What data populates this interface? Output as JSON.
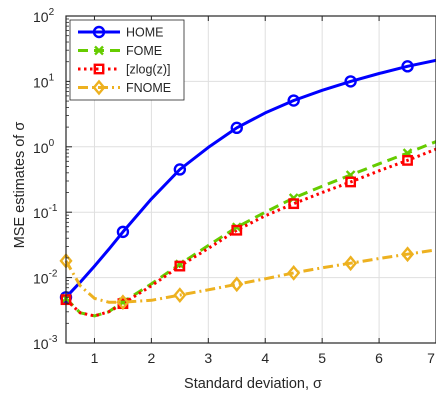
{
  "chart_data": {
    "type": "line",
    "xlabel": "Standard deviation, σ",
    "ylabel": "MSE estimates of σ",
    "xlim": [
      0.5,
      7
    ],
    "ylim": [
      0.001,
      100
    ],
    "yscale": "log",
    "grid": true,
    "legend_placement": "top-left",
    "x_ticks": [
      {
        "value": 1,
        "label": "1"
      },
      {
        "value": 2,
        "label": "2"
      },
      {
        "value": 3,
        "label": "3"
      },
      {
        "value": 4,
        "label": "4"
      },
      {
        "value": 5,
        "label": "5"
      },
      {
        "value": 6,
        "label": "6"
      },
      {
        "value": 7,
        "label": "7"
      }
    ],
    "y_ticks": [
      {
        "value": 0.001,
        "base": "10",
        "exp": "-3"
      },
      {
        "value": 0.01,
        "base": "10",
        "exp": "-2"
      },
      {
        "value": 0.1,
        "base": "10",
        "exp": "-1"
      },
      {
        "value": 1,
        "base": "10",
        "exp": "0"
      },
      {
        "value": 10,
        "base": "10",
        "exp": "1"
      },
      {
        "value": 100,
        "base": "10",
        "exp": "2"
      }
    ],
    "series": [
      {
        "name": "HOME",
        "color": "#0000ff",
        "dash": "solid",
        "marker": "circle",
        "x": [
          0.5,
          0.75,
          1,
          1.25,
          1.5,
          2,
          2.5,
          3,
          3.5,
          4,
          4.5,
          5,
          5.5,
          6,
          6.5,
          7
        ],
        "y": [
          0.005,
          0.0085,
          0.015,
          0.027,
          0.05,
          0.16,
          0.45,
          0.98,
          1.95,
          3.3,
          5.1,
          7.3,
          10.0,
          13.2,
          17.0,
          21.0
        ],
        "marker_x": [
          0.5,
          1.5,
          2.5,
          3.5,
          4.5,
          5.5,
          6.5
        ],
        "marker_y": [
          0.005,
          0.05,
          0.45,
          1.95,
          5.1,
          10.0,
          17.0
        ]
      },
      {
        "name": "FOME",
        "color": "#66cc00",
        "dash": "dashed",
        "marker": "x",
        "x": [
          0.5,
          0.75,
          1,
          1.25,
          1.5,
          2,
          2.5,
          3,
          3.5,
          4,
          4.5,
          5,
          5.5,
          6,
          6.5,
          7
        ],
        "y": [
          0.0048,
          0.0029,
          0.0026,
          0.003,
          0.0042,
          0.008,
          0.016,
          0.031,
          0.059,
          0.1,
          0.165,
          0.25,
          0.37,
          0.55,
          0.8,
          1.2
        ],
        "marker_x": [
          0.5,
          1.5,
          2.5,
          3.5,
          4.5,
          5.5,
          6.5
        ],
        "marker_y": [
          0.0048,
          0.0042,
          0.016,
          0.059,
          0.165,
          0.37,
          0.8
        ]
      },
      {
        "name": "[zlog(z)]",
        "color": "#ff0000",
        "dash": "dotted",
        "marker": "square",
        "x": [
          0.5,
          0.75,
          1,
          1.25,
          1.5,
          2,
          2.5,
          3,
          3.5,
          4,
          4.5,
          5,
          5.5,
          6,
          6.5,
          7
        ],
        "y": [
          0.0046,
          0.0029,
          0.0026,
          0.003,
          0.004,
          0.0075,
          0.015,
          0.028,
          0.053,
          0.088,
          0.135,
          0.2,
          0.29,
          0.43,
          0.62,
          0.92
        ],
        "marker_x": [
          0.5,
          1.5,
          2.5,
          3.5,
          4.5,
          5.5,
          6.5
        ],
        "marker_y": [
          0.0046,
          0.004,
          0.015,
          0.053,
          0.135,
          0.29,
          0.62
        ]
      },
      {
        "name": "FNOME",
        "color": "#edb120",
        "dash": "dashdot",
        "marker": "diamond",
        "x": [
          0.5,
          0.75,
          1,
          1.25,
          1.5,
          2,
          2.5,
          3,
          3.5,
          4,
          4.5,
          5,
          5.5,
          6,
          6.5,
          7
        ],
        "y": [
          0.018,
          0.0075,
          0.0048,
          0.0042,
          0.0042,
          0.0045,
          0.0054,
          0.0065,
          0.0079,
          0.0096,
          0.0118,
          0.0141,
          0.0166,
          0.0196,
          0.0228,
          0.0265
        ],
        "marker_x": [
          0.5,
          1.5,
          2.5,
          3.5,
          4.5,
          5.5,
          6.5
        ],
        "marker_y": [
          0.018,
          0.0042,
          0.0054,
          0.0079,
          0.0118,
          0.0166,
          0.0228
        ]
      }
    ]
  }
}
